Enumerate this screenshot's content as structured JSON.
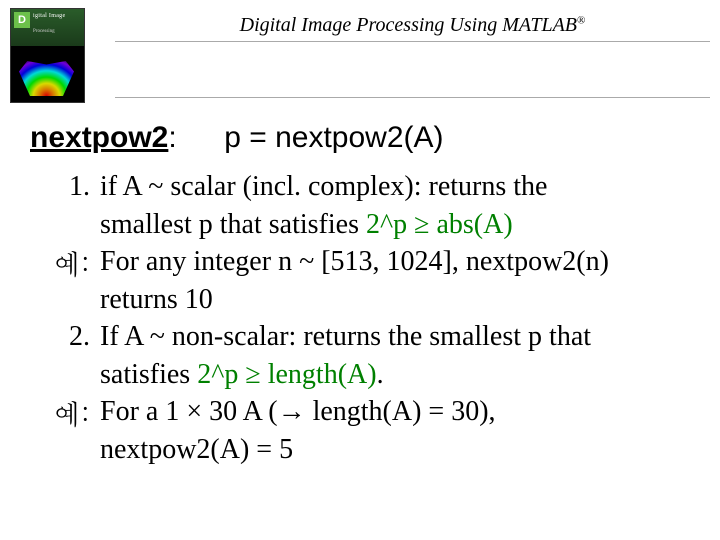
{
  "header": {
    "title_pre": "Digital Image Processing Using MATLAB",
    "title_sup": "®",
    "book": {
      "badge": "D",
      "line1": "igital Image",
      "line2": "Processing"
    }
  },
  "func": {
    "name": "nextpow2",
    "colon": ":",
    "sig": "p = nextpow2(A)"
  },
  "items": {
    "n1": "1.",
    "t1a": "if A ~ scalar (incl. complex): returns the",
    "t1b_pre": "smallest p that satisfies ",
    "t1b_green": "2^p ≥ abs(A)",
    "ex_label1": "예:",
    "ex1a": "For any integer n ~ [513, 1024], nextpow2(n)",
    "ex1b": "returns 10",
    "n2": "2.",
    "t2a": "If A ~ non-scalar: returns the smallest p that",
    "t2b_pre": "satisfies ",
    "t2b_green": "2^p ≥ length(A)",
    "t2b_post": ".",
    "ex_label2": "예:",
    "ex2a": "For a 1 × 30 A (→ length(A) = 30),",
    "ex2b": "nextpow2(A) = 5"
  },
  "colors": {
    "green": "#008000",
    "text": "#000000",
    "rule": "#aaaaaa",
    "bg": "#ffffff"
  }
}
